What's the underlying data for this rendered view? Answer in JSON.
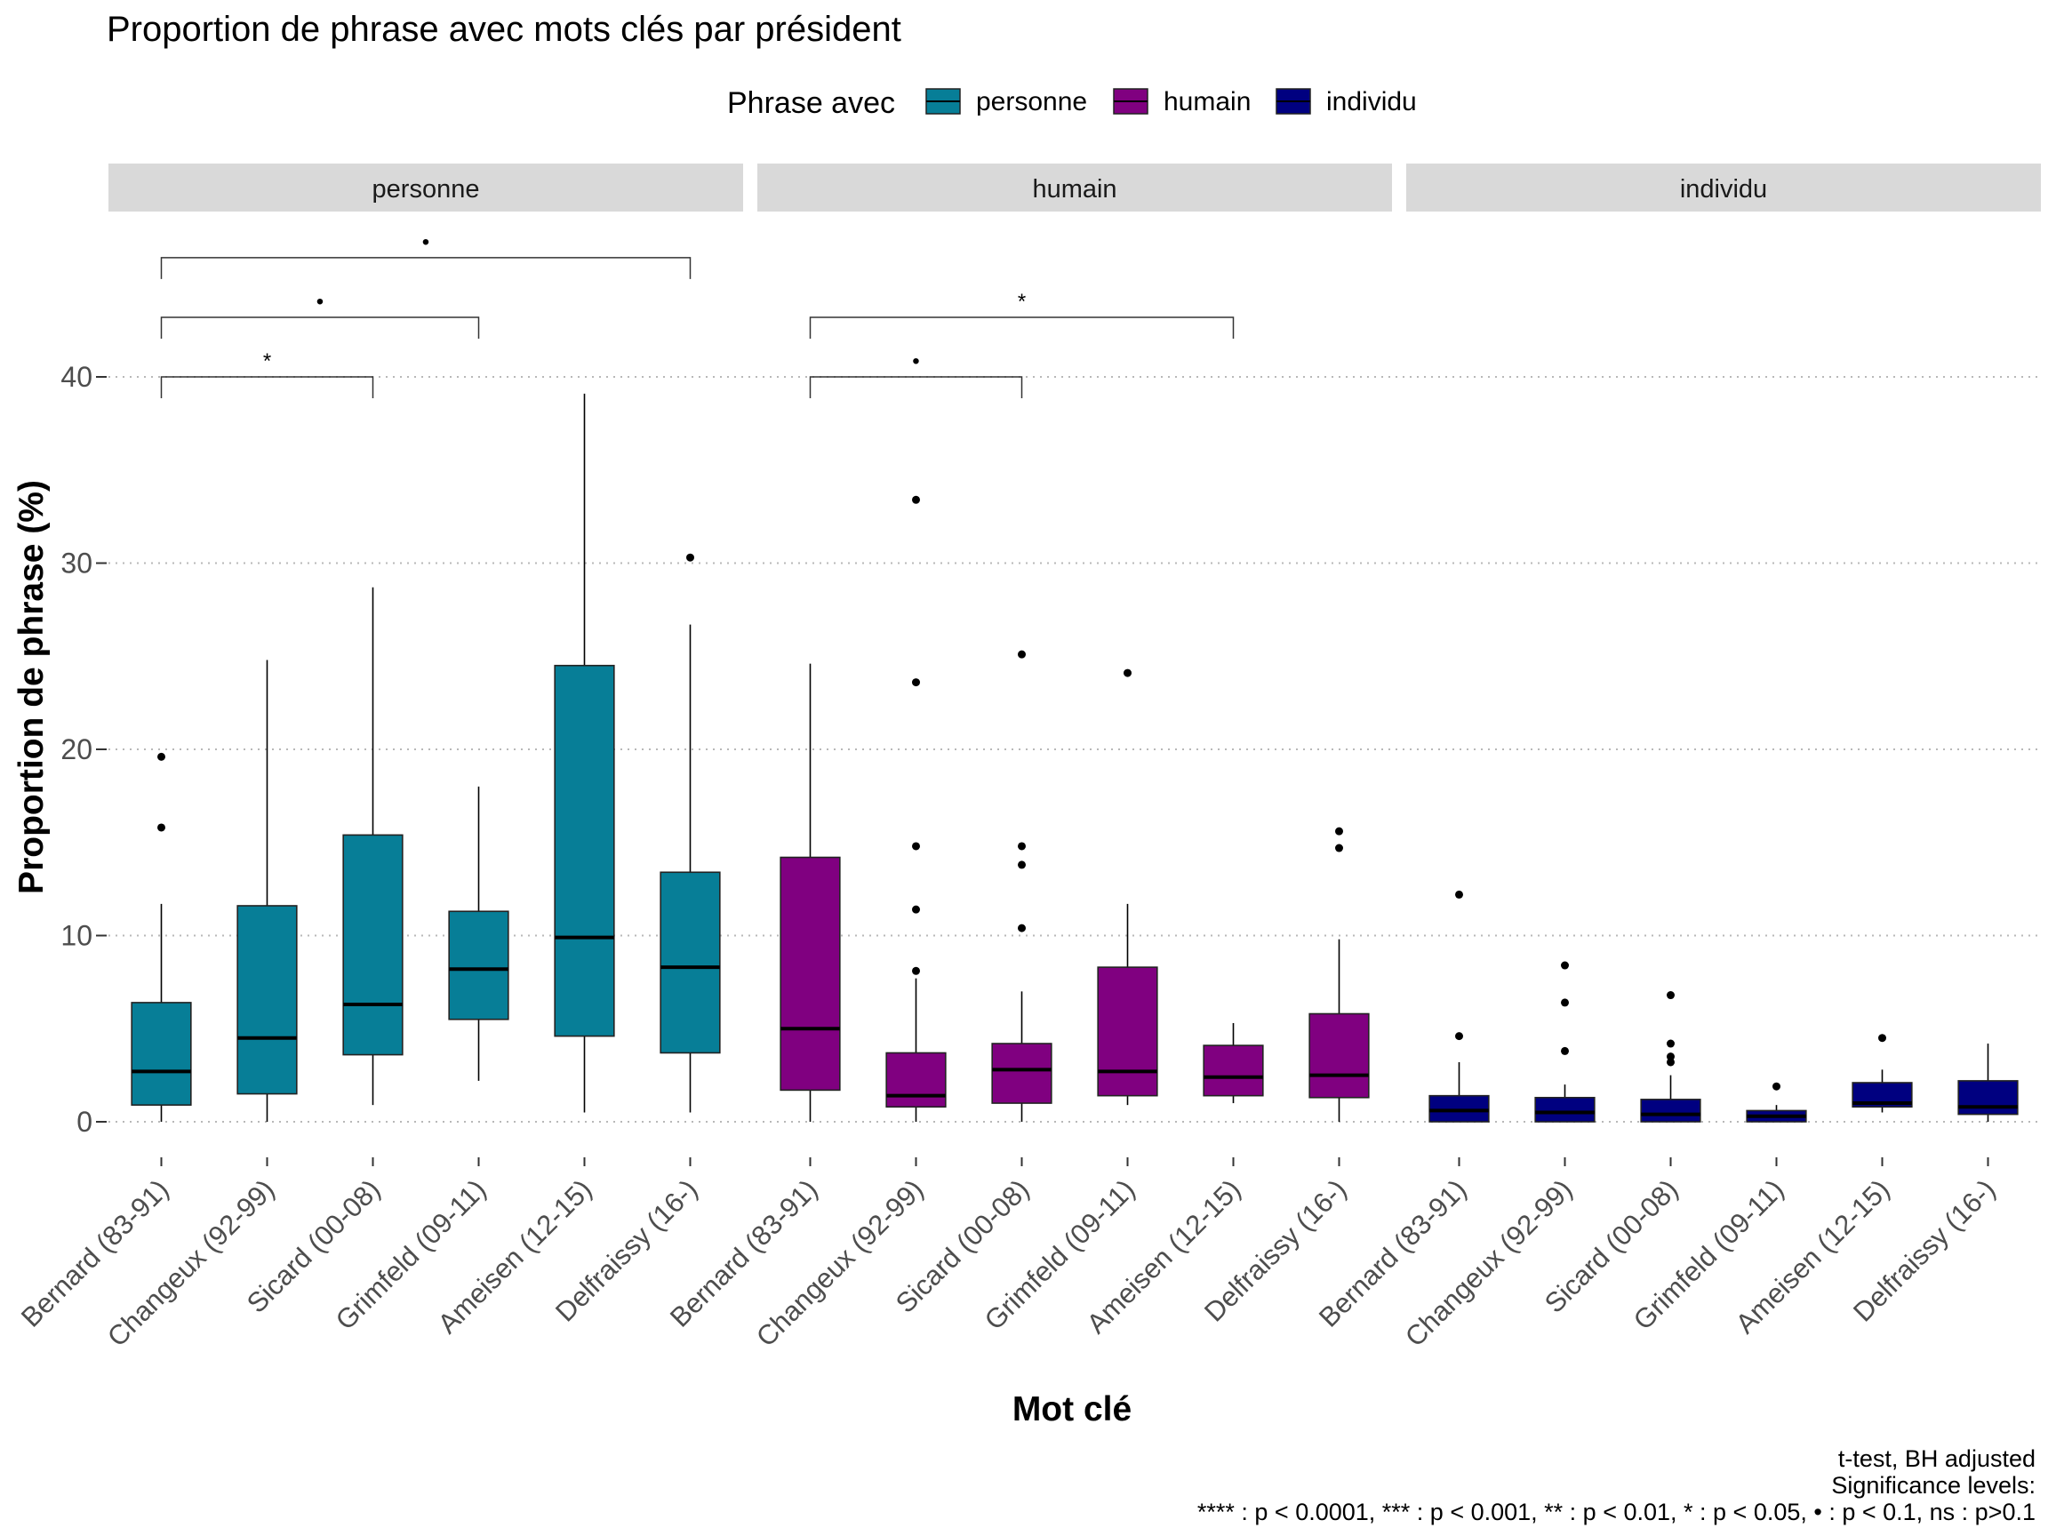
{
  "chart_data": {
    "type": "box",
    "title": "Proportion de phrase avec mots clés par président",
    "xlabel": "Mot clé",
    "ylabel": "Proportion de phrase (%)",
    "ylim": [
      -1,
      48
    ],
    "yticks": [
      0,
      10,
      20,
      30,
      40
    ],
    "grid": "horizontal dotted",
    "legend": {
      "title": "Phrase avec",
      "position": "top",
      "entries": [
        {
          "name": "personne",
          "color": "#077E97"
        },
        {
          "name": "humain",
          "color": "#800080"
        },
        {
          "name": "individu",
          "color": "#000080"
        }
      ]
    },
    "categories": [
      "Bernard (83-91)",
      "Changeux (92-99)",
      "Sicard (00-08)",
      "Grimfeld (09-11)",
      "Ameisen (12-15)",
      "Delfraissy (16-)"
    ],
    "panels": [
      {
        "name": "personne",
        "color": "#077E97",
        "boxes": [
          {
            "category": "Bernard (83-91)",
            "min": 0,
            "q1": 0.9,
            "median": 2.7,
            "q3": 6.4,
            "max": 11.7,
            "outliers": [
              15.8,
              19.6
            ]
          },
          {
            "category": "Changeux (92-99)",
            "min": 0,
            "q1": 1.5,
            "median": 4.5,
            "q3": 11.6,
            "max": 24.8,
            "outliers": []
          },
          {
            "category": "Sicard (00-08)",
            "min": 0.9,
            "q1": 3.6,
            "median": 6.3,
            "q3": 15.4,
            "max": 28.7,
            "outliers": []
          },
          {
            "category": "Grimfeld (09-11)",
            "min": 2.2,
            "q1": 5.5,
            "median": 8.2,
            "q3": 11.3,
            "max": 18.0,
            "outliers": []
          },
          {
            "category": "Ameisen (12-15)",
            "min": 0.5,
            "q1": 4.6,
            "median": 9.9,
            "q3": 24.5,
            "max": 39.1,
            "outliers": []
          },
          {
            "category": "Delfraissy (16-)",
            "min": 0.5,
            "q1": 3.7,
            "median": 8.3,
            "q3": 13.4,
            "max": 26.7,
            "outliers": [
              30.3
            ]
          }
        ],
        "brackets": [
          {
            "from": "Bernard (83-91)",
            "to": "Sicard (00-08)",
            "y": 40.0,
            "label": "*"
          },
          {
            "from": "Bernard (83-91)",
            "to": "Grimfeld (09-11)",
            "y": 43.2,
            "label": "•"
          },
          {
            "from": "Bernard (83-91)",
            "to": "Delfraissy (16-)",
            "y": 46.4,
            "label": "•"
          }
        ]
      },
      {
        "name": "humain",
        "color": "#800080",
        "boxes": [
          {
            "category": "Bernard (83-91)",
            "min": 0,
            "q1": 1.7,
            "median": 5.0,
            "q3": 14.2,
            "max": 24.6,
            "outliers": []
          },
          {
            "category": "Changeux (92-99)",
            "min": 0,
            "q1": 0.8,
            "median": 1.4,
            "q3": 3.7,
            "max": 7.7,
            "outliers": [
              8.1,
              11.4,
              14.8,
              23.6,
              33.4
            ]
          },
          {
            "category": "Sicard (00-08)",
            "min": 0,
            "q1": 1.0,
            "median": 2.8,
            "q3": 4.2,
            "max": 7.0,
            "outliers": [
              10.4,
              13.8,
              14.8,
              25.1
            ]
          },
          {
            "category": "Grimfeld (09-11)",
            "min": 0.9,
            "q1": 1.4,
            "median": 2.7,
            "q3": 8.3,
            "max": 11.7,
            "outliers": [
              24.1
            ]
          },
          {
            "category": "Ameisen (12-15)",
            "min": 1.0,
            "q1": 1.4,
            "median": 2.4,
            "q3": 4.1,
            "max": 5.3,
            "outliers": []
          },
          {
            "category": "Delfraissy (16-)",
            "min": 0,
            "q1": 1.3,
            "median": 2.5,
            "q3": 5.8,
            "max": 9.8,
            "outliers": [
              14.7,
              15.6
            ]
          }
        ],
        "brackets": [
          {
            "from": "Bernard (83-91)",
            "to": "Sicard (00-08)",
            "y": 40.0,
            "label": "•"
          },
          {
            "from": "Bernard (83-91)",
            "to": "Ameisen (12-15)",
            "y": 43.2,
            "label": "*"
          }
        ]
      },
      {
        "name": "individu",
        "color": "#000080",
        "boxes": [
          {
            "category": "Bernard (83-91)",
            "min": 0,
            "q1": 0,
            "median": 0.6,
            "q3": 1.4,
            "max": 3.2,
            "outliers": [
              4.6,
              12.2
            ]
          },
          {
            "category": "Changeux (92-99)",
            "min": 0,
            "q1": 0,
            "median": 0.5,
            "q3": 1.3,
            "max": 2.0,
            "outliers": [
              3.8,
              6.4,
              8.4
            ]
          },
          {
            "category": "Sicard (00-08)",
            "min": 0,
            "q1": 0,
            "median": 0.4,
            "q3": 1.2,
            "max": 2.5,
            "outliers": [
              3.2,
              3.5,
              4.2,
              6.8
            ]
          },
          {
            "category": "Grimfeld (09-11)",
            "min": 0,
            "q1": 0,
            "median": 0.3,
            "q3": 0.6,
            "max": 0.9,
            "outliers": [
              1.9
            ]
          },
          {
            "category": "Ameisen (12-15)",
            "min": 0.5,
            "q1": 0.8,
            "median": 1.0,
            "q3": 2.1,
            "max": 2.8,
            "outliers": [
              4.5
            ]
          },
          {
            "category": "Delfraissy (16-)",
            "min": 0,
            "q1": 0.4,
            "median": 0.8,
            "q3": 2.2,
            "max": 4.2,
            "outliers": []
          }
        ],
        "brackets": []
      }
    ],
    "caption": [
      "t-test, BH adjusted",
      "Significance levels:",
      "**** : p < 0.0001, *** : p < 0.001, ** : p < 0.01, * : p < 0.05, • : p < 0.1, ns : p>0.1"
    ]
  }
}
